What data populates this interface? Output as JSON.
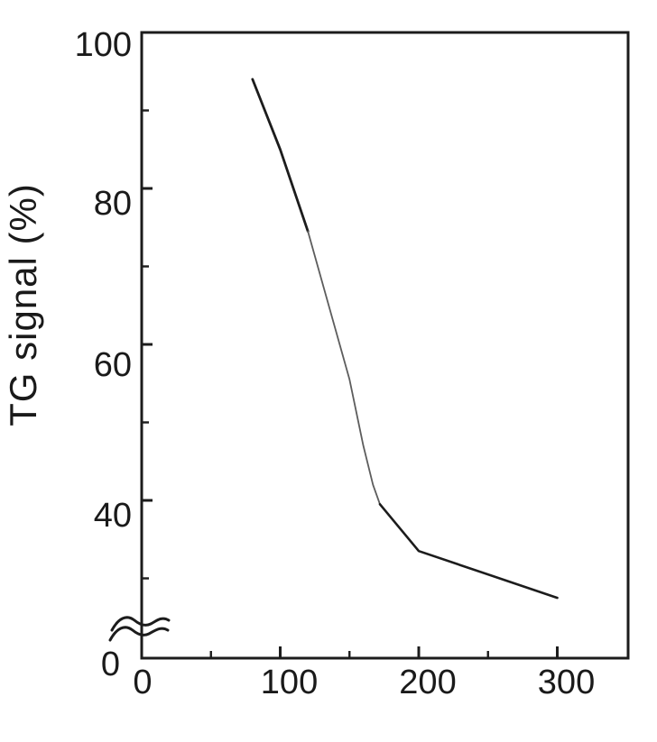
{
  "figure": {
    "background_color": "#ffffff",
    "ink_color": "#1c1c1c"
  },
  "chart_data": {
    "type": "line",
    "title": "",
    "xlabel": "",
    "ylabel": "TG signal (%)",
    "grid": false,
    "legend": false,
    "frame": "full-box",
    "xlim": [
      0,
      351
    ],
    "ylim": [
      0,
      100
    ],
    "x_tick_labels": [
      "0",
      "100",
      "200",
      "300"
    ],
    "x_tick_label_values": [
      0,
      100,
      200,
      300
    ],
    "x_ticks_minor": [
      50,
      150,
      250
    ],
    "y_tick_labels": [
      "100",
      "80",
      "60",
      "40",
      "0"
    ],
    "y_tick_label_values": [
      100,
      80,
      60,
      40,
      0
    ],
    "y_ticks_major_marks": [
      80,
      60,
      40
    ],
    "y_ticks_minor": [
      90,
      70,
      50,
      30
    ],
    "y_axis_break": {
      "present": true,
      "omitted_range": [
        0,
        25
      ]
    },
    "series": [
      {
        "name": "TG signal",
        "x": [
          80,
          100,
          120,
          150,
          160,
          167,
          172,
          200,
          300
        ],
        "y": [
          94,
          85,
          74.5,
          55.5,
          47,
          42,
          39.5,
          33.5,
          27.5
        ]
      }
    ]
  }
}
